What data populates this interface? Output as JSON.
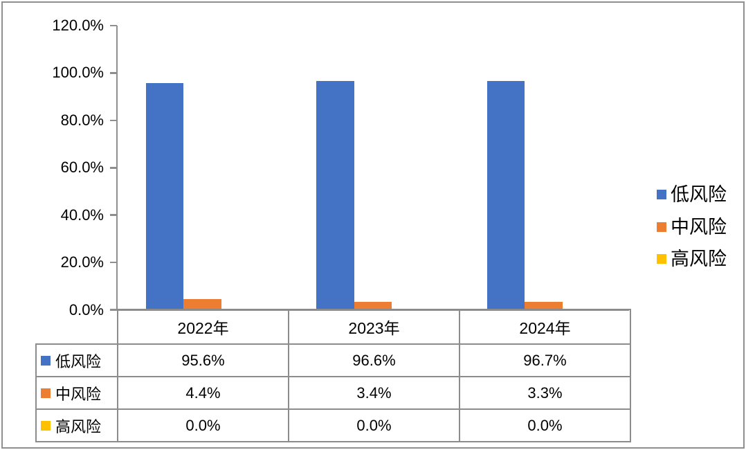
{
  "frame": {
    "background_color": "#ffffff",
    "border_color": "#8f8f8f"
  },
  "chart_data": {
    "type": "bar",
    "title": "",
    "categories": [
      "2022年",
      "2023年",
      "2024年"
    ],
    "series": [
      {
        "name": "低风险",
        "color": "#4472C4",
        "values": [
          95.6,
          96.6,
          96.7
        ],
        "labels": [
          "95.6%",
          "96.6%",
          "96.7%"
        ]
      },
      {
        "name": "中风险",
        "color": "#ED7D31",
        "values": [
          4.4,
          3.4,
          3.3
        ],
        "labels": [
          "4.4%",
          "3.4%",
          "3.3%"
        ]
      },
      {
        "name": "高风险",
        "color": "#FFC000",
        "values": [
          0.0,
          0.0,
          0.0
        ],
        "labels": [
          "0.0%",
          "0.0%",
          "0.0%"
        ]
      }
    ],
    "y_axis": {
      "min": 0,
      "max": 120,
      "ticks": [
        {
          "label": "120.0%",
          "value": 120
        },
        {
          "label": "100.0%",
          "value": 100
        },
        {
          "label": "80.0%",
          "value": 80
        },
        {
          "label": "60.0%",
          "value": 60
        },
        {
          "label": "40.0%",
          "value": 40
        },
        {
          "label": "20.0%",
          "value": 20
        },
        {
          "label": "0.0%",
          "value": 0
        }
      ]
    },
    "x_axis_label": "",
    "y_axis_label": "",
    "grid": false,
    "legend_position": "right",
    "data_table_shown": true,
    "axis_color": "#8f8f8f",
    "table_border_color": "#8c8c8c"
  }
}
